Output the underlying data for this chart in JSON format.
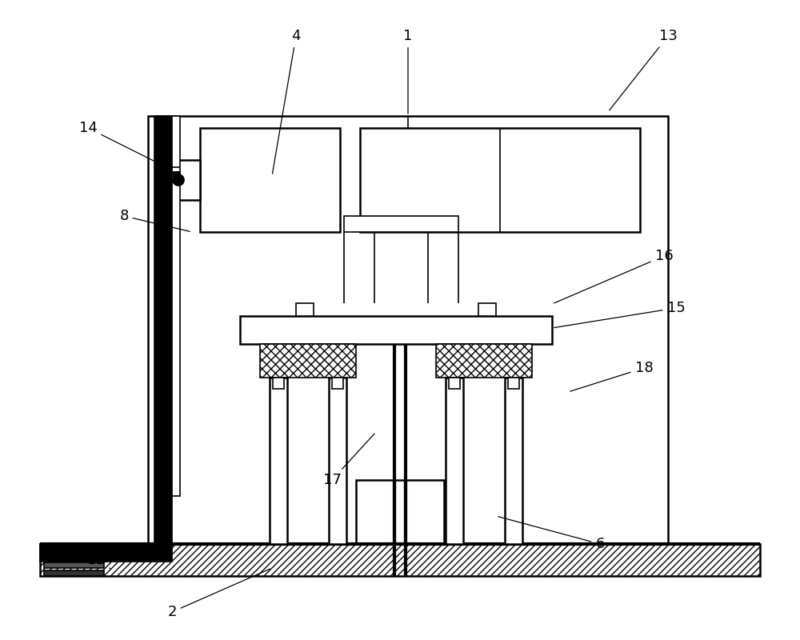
{
  "bg_color": "#ffffff",
  "line_color": "#000000",
  "figsize": [
    10.0,
    8.0
  ],
  "dpi": 100
}
